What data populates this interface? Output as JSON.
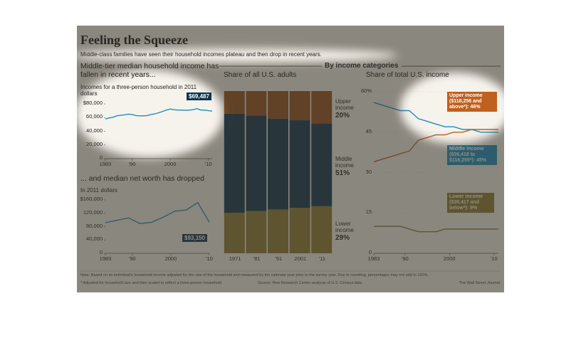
{
  "header": {
    "title": "Feeling the Squeeze",
    "subtitle": "Middle-class families have seen their household incomes plateau and then drop in recent years.",
    "section": "By income categories"
  },
  "chart_data": [
    {
      "type": "line",
      "title": "Middle-tier median household income has fallen in recent years...",
      "subtitle": "Incomes for a three-person household in 2011 dollars",
      "x": [
        1983,
        1984,
        1985,
        1986,
        1987,
        1988,
        1989,
        1990,
        1991,
        1992,
        1993,
        1994,
        1995,
        1996,
        1997,
        1998,
        1999,
        2000,
        2001,
        2002,
        2003,
        2004,
        2005,
        2006,
        2007,
        2008,
        2009,
        2010,
        2011
      ],
      "values": [
        58000,
        59500,
        60500,
        62500,
        63500,
        64000,
        65000,
        64500,
        63000,
        62500,
        62500,
        63000,
        64500,
        65500,
        67000,
        69000,
        71000,
        72500,
        71500,
        71000,
        71000,
        70500,
        71000,
        71500,
        73000,
        71000,
        71000,
        70000,
        69487
      ],
      "value_labels": [
        null,
        null,
        null,
        null,
        null,
        null,
        null,
        null,
        null,
        null,
        null,
        null,
        null,
        null,
        null,
        null,
        null,
        null,
        null,
        null,
        null,
        null,
        null,
        null,
        null,
        null,
        null,
        null,
        "$69,487"
      ],
      "color": "#1a8fc0",
      "xlim": [
        1983,
        2011
      ],
      "ylim": [
        0,
        80000
      ],
      "xticks": [
        1983,
        {
          "value": 1990,
          "label": "'90"
        },
        2000,
        {
          "value": 2010,
          "label": "'10"
        }
      ],
      "yticks": [
        {
          "value": 80000,
          "label": "$80,000"
        },
        {
          "value": 60000,
          "label": "60,000"
        },
        {
          "value": 40000,
          "label": "40,000"
        },
        {
          "value": 20000,
          "label": "20,000"
        },
        0
      ],
      "grid": false
    },
    {
      "type": "line",
      "title": "... and median net worth has dropped",
      "subtitle": "In 2011 dollars",
      "x": [
        1983,
        1989,
        1992,
        1995,
        1998,
        2001,
        2004,
        2007,
        2010
      ],
      "values": [
        92000,
        106000,
        89000,
        93000,
        108000,
        126000,
        130000,
        152000,
        93150
      ],
      "value_labels": [
        null,
        null,
        null,
        null,
        null,
        null,
        null,
        null,
        "$93,150"
      ],
      "color": "#1a8fc0",
      "xlim": [
        1983,
        2010
      ],
      "ylim": [
        0,
        160000
      ],
      "xticks": [
        1983,
        {
          "value": 1990,
          "label": "'90"
        },
        2000,
        {
          "value": 2010,
          "label": "'10"
        }
      ],
      "yticks": [
        {
          "value": 160000,
          "label": "$160,000"
        },
        {
          "value": 120000,
          "label": "120,000"
        },
        {
          "value": 80000,
          "label": "80,000"
        },
        {
          "value": 40000,
          "label": "40,000"
        },
        0
      ],
      "grid": false
    },
    {
      "type": "stacked_bar",
      "title": "Share of all U.S. adults",
      "categories": [
        "1971",
        "'81",
        "'91",
        "2001",
        "'11"
      ],
      "ylim": [
        0,
        100
      ],
      "series": [
        {
          "name": "Lower income",
          "color": "#8c7a30",
          "values": [
            25,
            26,
            27,
            28,
            29
          ],
          "value_labels": [
            null,
            null,
            null,
            null,
            "29%"
          ]
        },
        {
          "name": "Middle income",
          "color": "#0e3450",
          "values": [
            61,
            59,
            56,
            54,
            51
          ],
          "value_labels": [
            null,
            null,
            null,
            null,
            "51%"
          ]
        },
        {
          "name": "Upper income",
          "color": "#94501e",
          "values": [
            14,
            15,
            17,
            18,
            20
          ],
          "value_labels": [
            null,
            null,
            null,
            null,
            "20%"
          ]
        }
      ]
    },
    {
      "type": "line",
      "title": "Share of total U.S. income",
      "x": [
        1983,
        1985,
        1987,
        1989,
        1991,
        1993,
        1995,
        1997,
        1999,
        2001,
        2003,
        2005,
        2007,
        2009,
        2011
      ],
      "series": [
        {
          "name": "Upper income ($118,256 and above*): 46%",
          "color": "#c0601e",
          "values": [
            34,
            35,
            36,
            37,
            38,
            42,
            43,
            44,
            44,
            45,
            45,
            46,
            46,
            46,
            46
          ]
        },
        {
          "name": "Middle income ($39,418 to $118,255*): 45%",
          "color": "#1a8fc0",
          "values": [
            56,
            55,
            54,
            53,
            53,
            50,
            49,
            48,
            47,
            47,
            46,
            46,
            45,
            45,
            45
          ]
        },
        {
          "name": "Lower income ($39,417 and below*): 9%",
          "color": "#8c7a30",
          "values": [
            10,
            10,
            10,
            10,
            9,
            8,
            8,
            8,
            9,
            9,
            9,
            9,
            9,
            9,
            9
          ]
        }
      ],
      "xlim": [
        1983,
        2011
      ],
      "ylim": [
        0,
        60
      ],
      "xticks": [
        1983,
        {
          "value": 1990,
          "label": "'90"
        },
        2000,
        {
          "value": 2010,
          "label": "'10"
        }
      ],
      "yticks": [
        {
          "value": 60,
          "label": "60%"
        },
        45,
        30,
        15,
        0
      ],
      "grid": true
    }
  ],
  "footer": {
    "note": "Note: Based on an individual's household income adjusted for the size of the household and measured by the calendar year prior to the survey year. Due to rounding, percentages may not add to 100%.",
    "footnote": "* Adjusted for household size and then scaled to reflect a three-person household",
    "source": "Source: Pew Research Center analysis of U.S. Census data",
    "credit": "The Wall Street Journal"
  }
}
